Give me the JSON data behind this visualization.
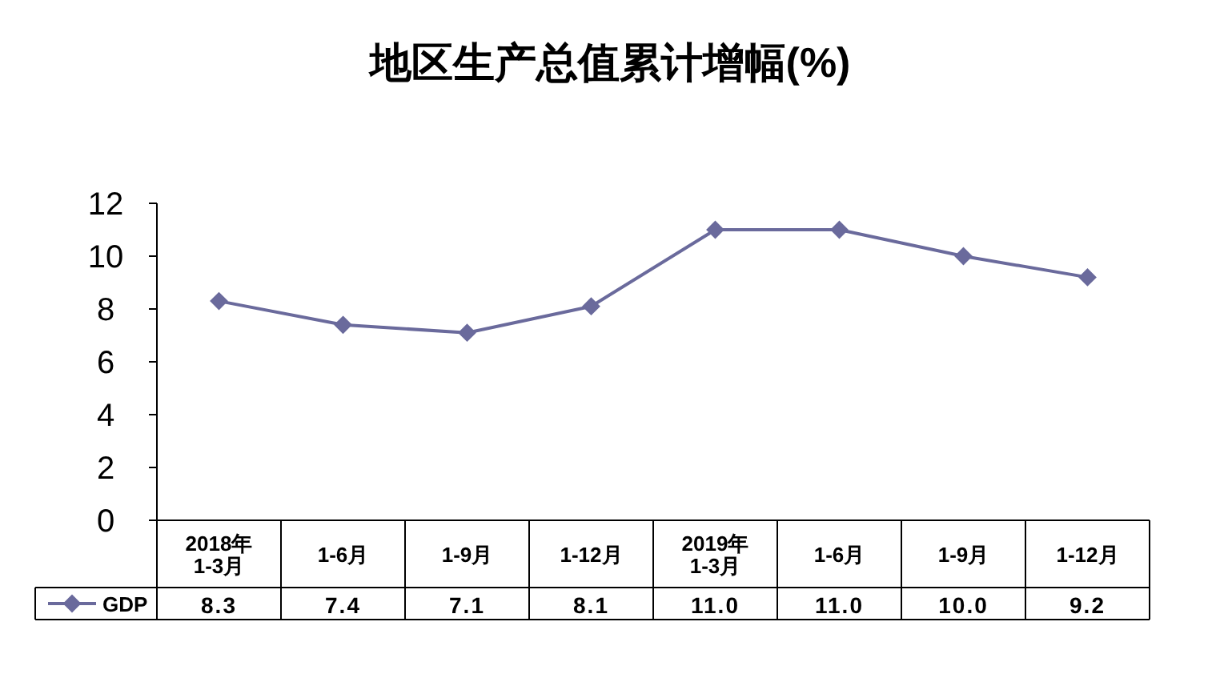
{
  "chart_data": {
    "type": "line",
    "title": "地区生产总值累计增幅(%)",
    "categories": [
      "2018年\n1-3月",
      "1-6月",
      "1-9月",
      "1-12月",
      "2019年\n1-3月",
      "1-6月",
      "1-9月",
      "1-12月"
    ],
    "series": [
      {
        "name": "GDP",
        "color": "#6a6a9c",
        "values": [
          8.3,
          7.4,
          7.1,
          8.1,
          11.0,
          11.0,
          10.0,
          9.2
        ],
        "value_labels": [
          "8.3",
          "7.4",
          "7.1",
          "8.1",
          "11.0",
          "11.0",
          "10.0",
          "9.2"
        ]
      }
    ],
    "ylim": [
      0,
      12
    ],
    "yticks": [
      0,
      2,
      4,
      6,
      8,
      10,
      12
    ],
    "marker": "diamond",
    "line_style": "solid",
    "legend": "bottom left",
    "grid": false
  }
}
